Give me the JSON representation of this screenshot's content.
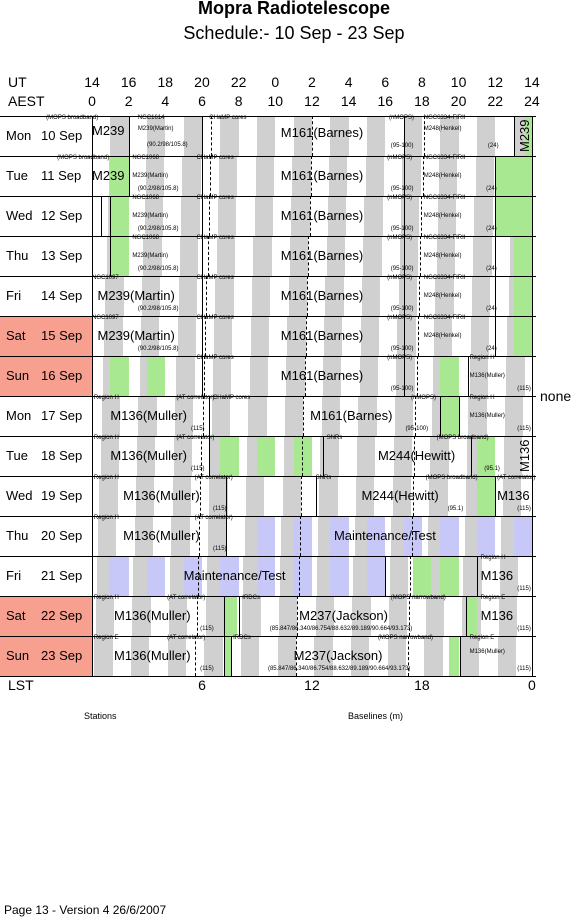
{
  "title": "Mopra Radiotelescope",
  "subtitle": "Schedule:- 10 Sep - 23 Sep",
  "header": {
    "ut_label": "UT",
    "aest_label": "AEST",
    "lst_label": "LST",
    "ut_ticks": [
      "14",
      "16",
      "18",
      "20",
      "22",
      "0",
      "2",
      "4",
      "6",
      "8",
      "10",
      "12",
      "14"
    ],
    "aest_ticks": [
      "0",
      "2",
      "4",
      "6",
      "8",
      "10",
      "12",
      "14",
      "16",
      "18",
      "20",
      "22",
      "24"
    ],
    "lst_ticks": [
      "6",
      "12",
      "18",
      "0"
    ]
  },
  "days": [
    {
      "dow": "Mon",
      "date": "10 Sep",
      "weekend": false
    },
    {
      "dow": "Tue",
      "date": "11 Sep",
      "weekend": false
    },
    {
      "dow": "Wed",
      "date": "12 Sep",
      "weekend": false
    },
    {
      "dow": "Thu",
      "date": "13 Sep",
      "weekend": false
    },
    {
      "dow": "Fri",
      "date": "14 Sep",
      "weekend": false
    },
    {
      "dow": "Sat",
      "date": "15 Sep",
      "weekend": true
    },
    {
      "dow": "Sun",
      "date": "16 Sep",
      "weekend": true
    },
    {
      "dow": "Mon",
      "date": "17 Sep",
      "weekend": false
    },
    {
      "dow": "Tue",
      "date": "18 Sep",
      "weekend": false
    },
    {
      "dow": "Wed",
      "date": "19 Sep",
      "weekend": false
    },
    {
      "dow": "Thu",
      "date": "20 Sep",
      "weekend": false
    },
    {
      "dow": "Fri",
      "date": "21 Sep",
      "weekend": false
    },
    {
      "dow": "Sat",
      "date": "22 Sep",
      "weekend": true
    },
    {
      "dow": "Sun",
      "date": "23 Sep",
      "weekend": true
    }
  ],
  "colors": {
    "weekend": "#f8a090",
    "night": "#d0d0d0",
    "green": "#a8e890",
    "lavender": "#c8c8f8",
    "line": "#000000"
  },
  "labels": {
    "mops_broadband": "(MOPS broadband)",
    "m239": "M239",
    "m239_martin": "M239(Martin)",
    "m239_freq": "(90.2/98/105.8)",
    "ngc1614": "NGC1614",
    "ngc1068": "NGC1068",
    "ngc1097": "NGC1097",
    "champ_cores": "CHaMP cores",
    "m161_barnes": "M161(Barnes)",
    "nmops": "(nMOPS)",
    "freq_95_100": "(95-100)",
    "ngc6334": "NGC6334-FIRII",
    "m248_henkel": "M248(Henkel)",
    "n24": "(24)",
    "region_h": "Region H",
    "region_e": "Region E",
    "m136_muller": "M136(Muller)",
    "m136": "M136",
    "n115": "(115)",
    "at_correlator": "(AT correlator)",
    "snrs": "SNRs",
    "m244_hewitt": "M244(Hewitt)",
    "n95_1": "(95.1)",
    "mops_broadband2": "(MOPS broadband)",
    "maintenance": "Maintenance/Test",
    "irdcs": "IRDCs",
    "m237_jackson": "M237(Jackson)",
    "m237_freq": "(85.847/86.340/86.754/88.632/89.189/90.664/93.173)",
    "mops_narrowband": "(MOPS narrowband)",
    "none": "none"
  },
  "footer": {
    "stations": "Stations",
    "baselines": "Baselines (m)",
    "page_info": "Page 13 - Version 4  26/6/2007"
  }
}
